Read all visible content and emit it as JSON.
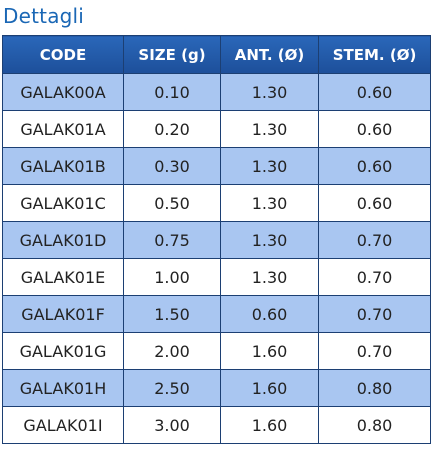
{
  "page": {
    "title": "Dettagli"
  },
  "table": {
    "headers": {
      "code": "CODE",
      "size": "SIZE (g)",
      "ant": "ANT. (Ø)",
      "stem": "STEM. (Ø)"
    },
    "rows": [
      {
        "code": "GALAK00A",
        "size": "0.10",
        "ant": "1.30",
        "stem": "0.60"
      },
      {
        "code": "GALAK01A",
        "size": "0.20",
        "ant": "1.30",
        "stem": "0.60"
      },
      {
        "code": "GALAK01B",
        "size": "0.30",
        "ant": "1.30",
        "stem": "0.60"
      },
      {
        "code": "GALAK01C",
        "size": "0.50",
        "ant": "1.30",
        "stem": "0.60"
      },
      {
        "code": "GALAK01D",
        "size": "0.75",
        "ant": "1.30",
        "stem": "0.70"
      },
      {
        "code": "GALAK01E",
        "size": "1.00",
        "ant": "1.30",
        "stem": "0.70"
      },
      {
        "code": "GALAK01F",
        "size": "1.50",
        "ant": "0.60",
        "stem": "0.70"
      },
      {
        "code": "GALAK01G",
        "size": "2.00",
        "ant": "1.60",
        "stem": "0.70"
      },
      {
        "code": "GALAK01H",
        "size": "2.50",
        "ant": "1.60",
        "stem": "0.80"
      },
      {
        "code": "GALAK01I",
        "size": "3.00",
        "ant": "1.60",
        "stem": "0.80"
      }
    ]
  },
  "colors": {
    "title": "#1a67b5",
    "header_bg": "#1d4f9a",
    "row_alt_bg": "#a9c6f1",
    "border": "#1c3f73"
  }
}
